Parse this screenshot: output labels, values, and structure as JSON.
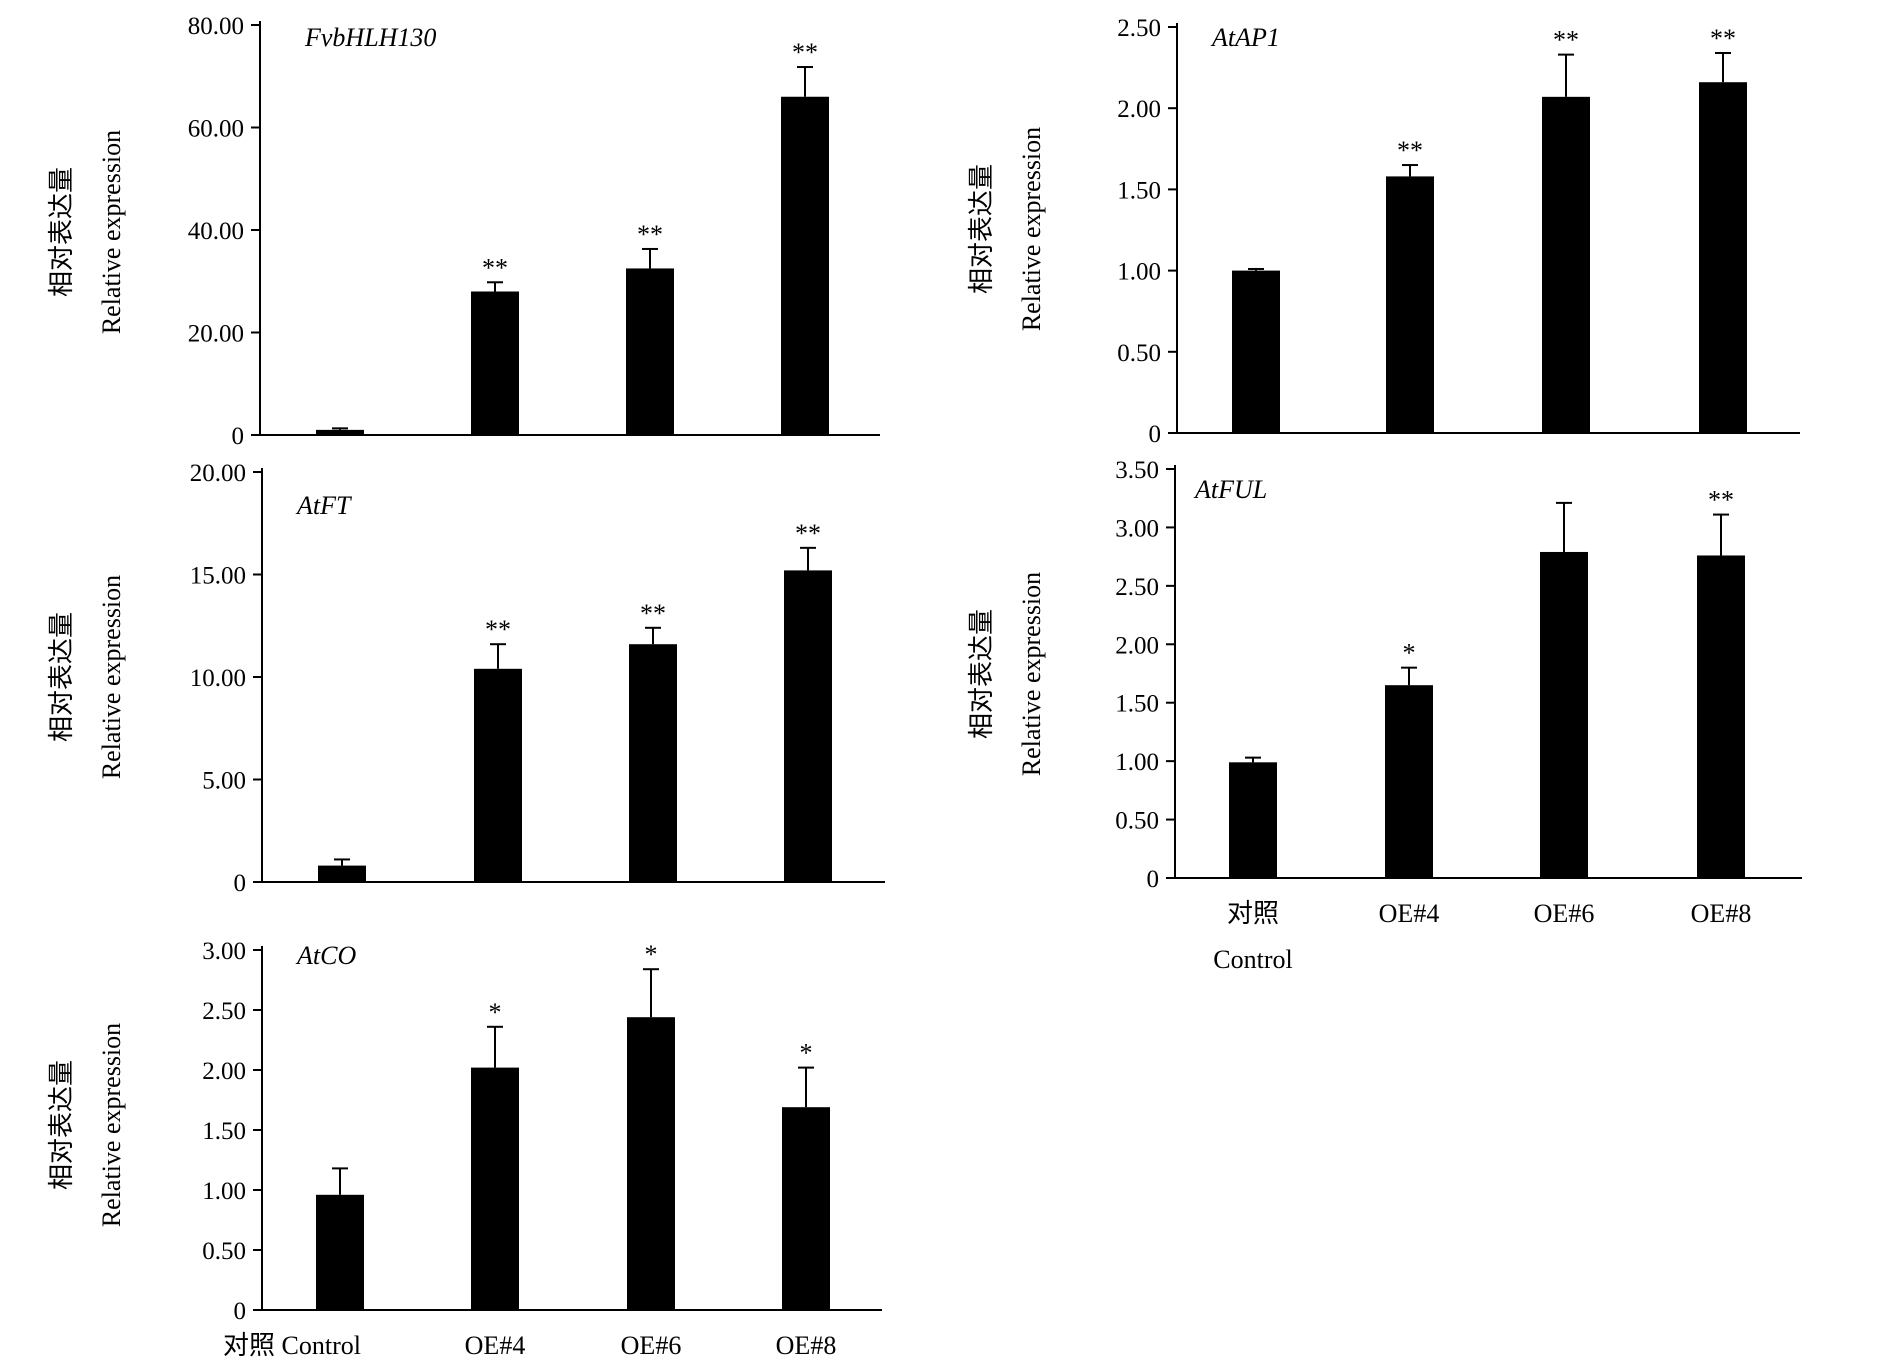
{
  "chart_data": [
    {
      "type": "bar",
      "title": "FvbHLH130",
      "ylabel_cn": "相对表达量",
      "ylabel_en": "Relative expression",
      "categories": [
        "对照 Control",
        "OE#4",
        "OE#6",
        "OE#8"
      ],
      "values": [
        1.0,
        28.0,
        32.5,
        66.0
      ],
      "errors": [
        0.3,
        1.8,
        3.8,
        5.8
      ],
      "significance": [
        "",
        "**",
        "**",
        "**"
      ],
      "ylim": [
        0,
        80
      ],
      "yticks": [
        "0",
        "20.00",
        "40.00",
        "60.00",
        "80.00"
      ],
      "show_categories": false
    },
    {
      "type": "bar",
      "title": "AtAP1",
      "ylabel_cn": "相对表达量",
      "ylabel_en": "Relative expression",
      "categories": [
        "对照 Control",
        "OE#4",
        "OE#6",
        "OE#8"
      ],
      "values": [
        1.0,
        1.58,
        2.07,
        2.16
      ],
      "errors": [
        0.01,
        0.07,
        0.26,
        0.18
      ],
      "significance": [
        "",
        "**",
        "**",
        "**"
      ],
      "ylim": [
        0,
        2.5
      ],
      "yticks": [
        "0",
        "0.50",
        "1.00",
        "1.50",
        "2.00",
        "2.50"
      ],
      "show_categories": false
    },
    {
      "type": "bar",
      "title": "AtFT",
      "ylabel_cn": "相对表达量",
      "ylabel_en": "Relative expression",
      "categories": [
        "对照 Control",
        "OE#4",
        "OE#6",
        "OE#8"
      ],
      "values": [
        0.8,
        10.4,
        11.6,
        15.2
      ],
      "errors": [
        0.3,
        1.2,
        0.8,
        1.1
      ],
      "significance": [
        "",
        "**",
        "**",
        "**"
      ],
      "ylim": [
        0,
        20
      ],
      "yticks": [
        "0",
        "5.00",
        "10.00",
        "15.00",
        "20.00"
      ],
      "show_categories": false
    },
    {
      "type": "bar",
      "title": "AtFUL",
      "ylabel_cn": "相对表达量",
      "ylabel_en": "Relative expression",
      "categories": [
        "对照 Control",
        "OE#4",
        "OE#6",
        "OE#8"
      ],
      "values": [
        0.99,
        1.65,
        2.79,
        2.76
      ],
      "errors": [
        0.04,
        0.15,
        0.42,
        0.35
      ],
      "significance": [
        "",
        "*",
        "",
        "**"
      ],
      "ylim": [
        0,
        3.5
      ],
      "yticks": [
        "0",
        "0.50",
        "1.00",
        "1.50",
        "2.00",
        "2.50",
        "3.00",
        "3.50"
      ],
      "show_categories": true,
      "category_lines": [
        [
          "对照",
          "Control"
        ],
        [
          "OE#4"
        ],
        [
          "OE#6"
        ],
        [
          "OE#8"
        ]
      ]
    },
    {
      "type": "bar",
      "title": "AtCO",
      "ylabel_cn": "相对表达量",
      "ylabel_en": "Relative expression",
      "categories": [
        "对照 Control",
        "OE#4",
        "OE#6",
        "OE#8"
      ],
      "values": [
        0.96,
        2.02,
        2.44,
        1.69
      ],
      "errors": [
        0.22,
        0.34,
        0.4,
        0.33
      ],
      "significance": [
        "",
        "*",
        "*",
        "*"
      ],
      "ylim": [
        0,
        3.0
      ],
      "yticks": [
        "0",
        "0.50",
        "1.00",
        "1.50",
        "2.00",
        "2.50",
        "3.00"
      ],
      "show_categories": true,
      "category_lines": [
        [
          "对照  Control"
        ],
        [
          "OE#4"
        ],
        [
          "OE#6"
        ],
        [
          "OE#8"
        ]
      ]
    }
  ]
}
